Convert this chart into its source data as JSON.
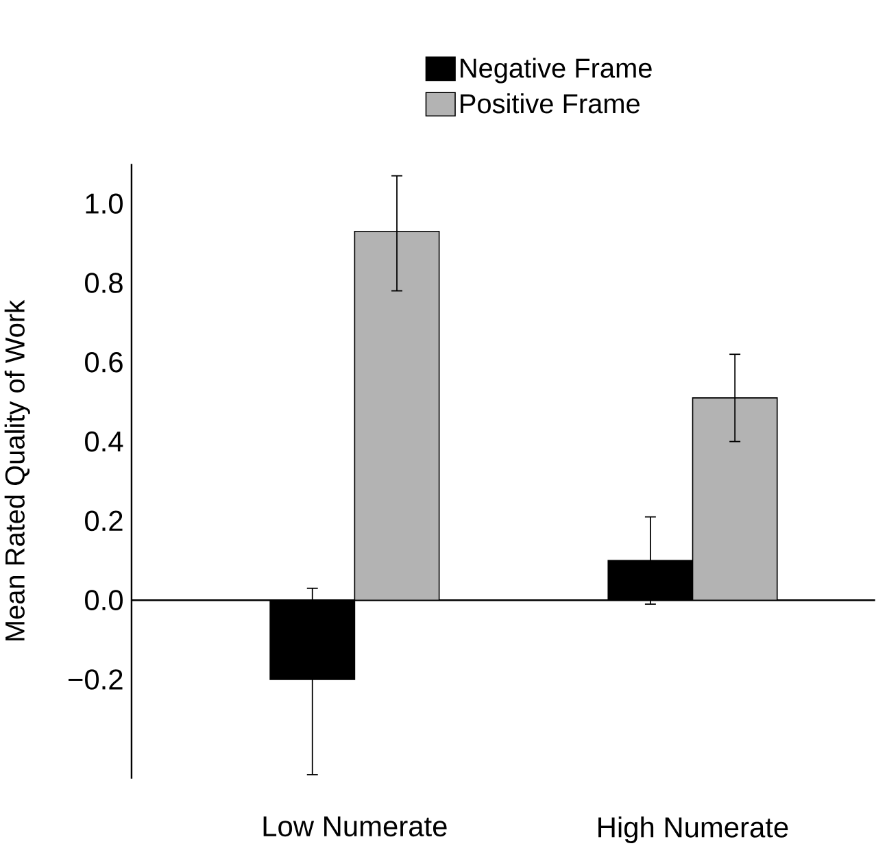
{
  "chart_data": {
    "type": "bar",
    "ylabel": "Mean Rated Quality of Work",
    "categories": [
      "Low Numerate",
      "High Numerate"
    ],
    "series": [
      {
        "name": "Negative Frame",
        "color": "#000000",
        "values": [
          -0.2,
          0.1
        ],
        "errors": [
          [
            -0.44,
            0.03
          ],
          [
            -0.01,
            0.21
          ]
        ]
      },
      {
        "name": "Positive Frame",
        "color": "#b3b3b3",
        "values": [
          0.93,
          0.51
        ],
        "errors": [
          [
            0.78,
            1.07
          ],
          [
            0.4,
            0.62
          ]
        ]
      }
    ],
    "ylim": [
      -0.45,
      1.1
    ],
    "yticks": [
      {
        "value": -0.2,
        "label": "−0.2"
      },
      {
        "value": 0.0,
        "label": "0.0"
      },
      {
        "value": 0.2,
        "label": "0.2"
      },
      {
        "value": 0.4,
        "label": "0.4"
      },
      {
        "value": 0.6,
        "label": "0.6"
      },
      {
        "value": 0.8,
        "label": "0.8"
      },
      {
        "value": 1.0,
        "label": "1.0"
      }
    ],
    "legend": "top"
  }
}
